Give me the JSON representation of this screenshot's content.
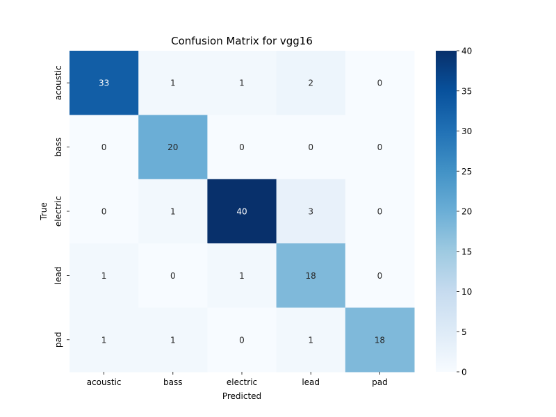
{
  "chart_data": {
    "type": "heatmap",
    "title": "Confusion Matrix for vgg16",
    "xlabel": "Predicted",
    "ylabel": "True",
    "x_categories": [
      "acoustic",
      "bass",
      "electric",
      "lead",
      "pad"
    ],
    "y_categories": [
      "acoustic",
      "bass",
      "electric",
      "lead",
      "pad"
    ],
    "values": [
      [
        33,
        1,
        1,
        2,
        0
      ],
      [
        0,
        20,
        0,
        0,
        0
      ],
      [
        0,
        1,
        40,
        3,
        0
      ],
      [
        1,
        0,
        1,
        18,
        0
      ],
      [
        1,
        1,
        0,
        1,
        18
      ]
    ],
    "colorbar": {
      "min": 0,
      "max": 40,
      "ticks": [
        0,
        5,
        10,
        15,
        20,
        25,
        30,
        35,
        40
      ]
    },
    "colormap": [
      "#f7fbff",
      "#deebf7",
      "#c6dbef",
      "#9ecae1",
      "#6baed6",
      "#4292c6",
      "#2171b5",
      "#08519c",
      "#08306b"
    ]
  }
}
